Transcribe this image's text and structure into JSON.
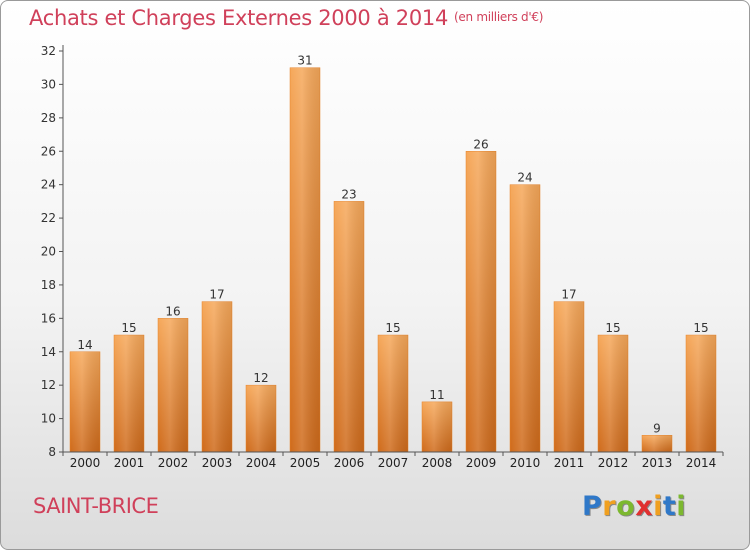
{
  "title": "Achats et Charges Externes 2000 à 2014",
  "unit_note": "(en milliers d'€)",
  "commune": "SAINT-BRICE",
  "logo": {
    "letters": [
      "P",
      "r",
      "o",
      "x",
      "i",
      "t",
      "i"
    ],
    "colors": [
      "#2f78c8",
      "#f0a020",
      "#7cb82f",
      "#e03030",
      "#f0a020",
      "#2f78c8",
      "#7cb82f"
    ]
  },
  "colors": {
    "bar": "#e88a35",
    "title": "#d0405a"
  },
  "chart_data": {
    "type": "bar",
    "categories": [
      "2000",
      "2001",
      "2002",
      "2003",
      "2004",
      "2005",
      "2006",
      "2007",
      "2008",
      "2009",
      "2010",
      "2011",
      "2012",
      "2013",
      "2014"
    ],
    "values": [
      14,
      15,
      16,
      17,
      12,
      31,
      23,
      15,
      11,
      26,
      24,
      17,
      15,
      9,
      15
    ],
    "title": "Achats et Charges Externes 2000 à 2014",
    "ylim": [
      8,
      32
    ],
    "yticks": [
      8,
      10,
      12,
      14,
      16,
      18,
      20,
      22,
      24,
      26,
      28,
      30,
      32
    ],
    "grid": false,
    "data_labels": true
  }
}
